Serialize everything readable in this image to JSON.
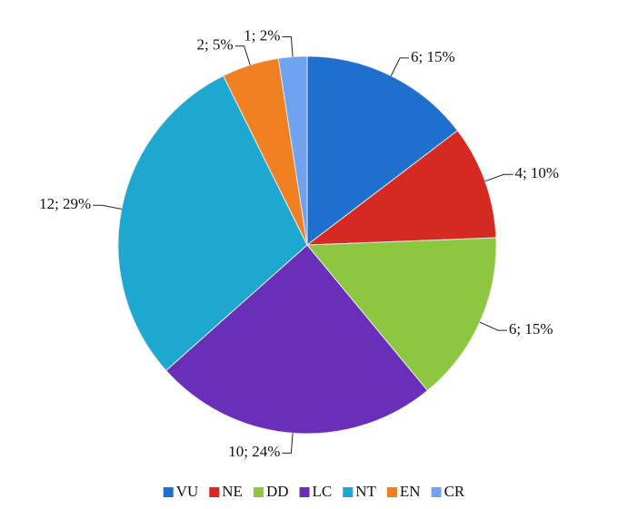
{
  "chart_data": {
    "type": "pie",
    "categories": [
      "VU",
      "NE",
      "DD",
      "LC",
      "NT",
      "EN",
      "CR"
    ],
    "values": [
      6,
      4,
      6,
      10,
      12,
      2,
      1
    ],
    "value_labels": [
      "6; 15%",
      "4; 10%",
      "6; 15%",
      "10; 24%",
      "12; 29%",
      "2; 5%",
      "1; 2%"
    ],
    "colors": [
      "#1f6fcf",
      "#d42a22",
      "#8dc63f",
      "#6a2fb8",
      "#1ea8d0",
      "#f07f22",
      "#6fa2ef"
    ],
    "legend": "bottom"
  }
}
